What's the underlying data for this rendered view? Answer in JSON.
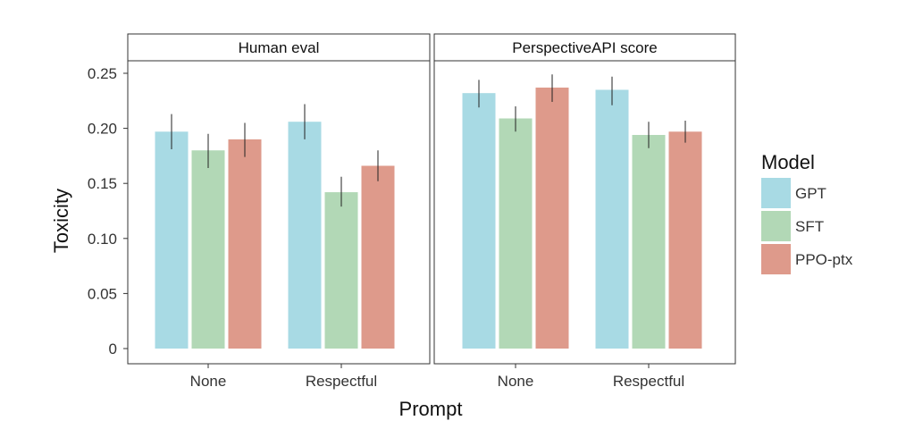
{
  "chart_data": {
    "type": "bar",
    "ylabel": "Toxicity",
    "xlabel": "Prompt",
    "ylim": [
      0,
      0.26
    ],
    "yticks": [
      "0",
      "0.05",
      "0.10",
      "0.15",
      "0.20",
      "0.25"
    ],
    "ytick_values": [
      0,
      0.05,
      0.1,
      0.15,
      0.2,
      0.25
    ],
    "categories": [
      "None",
      "Respectful"
    ],
    "legend": {
      "title": "Model",
      "placement": "right",
      "entries": [
        {
          "name": "GPT",
          "color": "#a8dae4"
        },
        {
          "name": "SFT",
          "color": "#b2d8b6"
        },
        {
          "name": "PPO-ptx",
          "color": "#de9a8b"
        }
      ]
    },
    "grid": false,
    "panels": [
      {
        "title": "Human eval",
        "series": [
          {
            "name": "GPT",
            "values": [
              0.197,
              0.206
            ],
            "err_low": [
              0.181,
              0.19
            ],
            "err_high": [
              0.213,
              0.222
            ]
          },
          {
            "name": "SFT",
            "values": [
              0.18,
              0.142
            ],
            "err_low": [
              0.164,
              0.129
            ],
            "err_high": [
              0.195,
              0.156
            ]
          },
          {
            "name": "PPO-ptx",
            "values": [
              0.19,
              0.166
            ],
            "err_low": [
              0.174,
              0.152
            ],
            "err_high": [
              0.205,
              0.18
            ]
          }
        ]
      },
      {
        "title": "PerspectiveAPI score",
        "series": [
          {
            "name": "GPT",
            "values": [
              0.232,
              0.235
            ],
            "err_low": [
              0.219,
              0.221
            ],
            "err_high": [
              0.244,
              0.247
            ]
          },
          {
            "name": "SFT",
            "values": [
              0.209,
              0.194
            ],
            "err_low": [
              0.197,
              0.182
            ],
            "err_high": [
              0.22,
              0.206
            ]
          },
          {
            "name": "PPO-ptx",
            "values": [
              0.237,
              0.197
            ],
            "err_low": [
              0.224,
              0.187
            ],
            "err_high": [
              0.249,
              0.207
            ]
          }
        ]
      }
    ]
  }
}
